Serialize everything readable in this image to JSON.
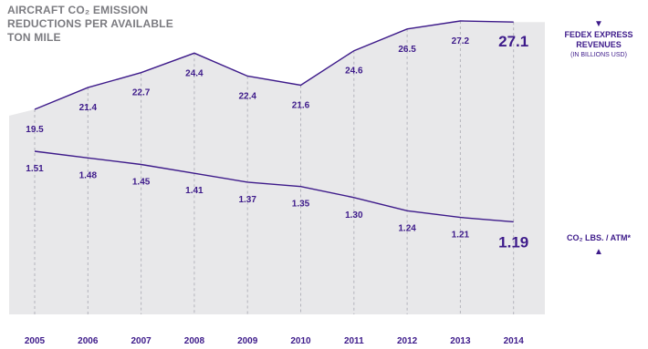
{
  "title": "AIRCRAFT CO₂ EMISSION\nREDUCTIONS PER AVAILABLE\nTON MILE",
  "colors": {
    "panel": "#e8e8ea",
    "line": "#3d1a8a",
    "label": "#3d1a8a",
    "guide": "#b4b4bc",
    "axis": "#3d1a8a"
  },
  "revenue_legend": {
    "marker": "▼",
    "label": "FEDEX EXPRESS\nREVENUES",
    "sublabel": "(IN BILLIONS USD)"
  },
  "co2_legend": {
    "label": "CO₂ LBS. / ATM*",
    "marker": "▲"
  },
  "chart_data": {
    "type": "line",
    "categories": [
      "2005",
      "2006",
      "2007",
      "2008",
      "2009",
      "2010",
      "2011",
      "2012",
      "2013",
      "2014"
    ],
    "series": [
      {
        "name": "FEDEX EXPRESS REVENUES",
        "values": [
          19.5,
          21.4,
          22.7,
          24.4,
          22.4,
          21.6,
          24.6,
          26.5,
          27.2,
          27.1
        ],
        "labels": [
          "19.5",
          "21.4",
          "22.7",
          "24.4",
          "22.4",
          "21.6",
          "24.6",
          "26.5",
          "27.2",
          "27.1"
        ]
      },
      {
        "name": "CO₂ LBS. / ATM*",
        "values": [
          1.51,
          1.48,
          1.45,
          1.41,
          1.37,
          1.35,
          1.3,
          1.24,
          1.21,
          1.19
        ],
        "labels": [
          "1.51",
          "1.48",
          "1.45",
          "1.41",
          "1.37",
          "1.35",
          "1.30",
          "1.24",
          "1.21",
          "1.19"
        ]
      }
    ],
    "legend": "right"
  }
}
